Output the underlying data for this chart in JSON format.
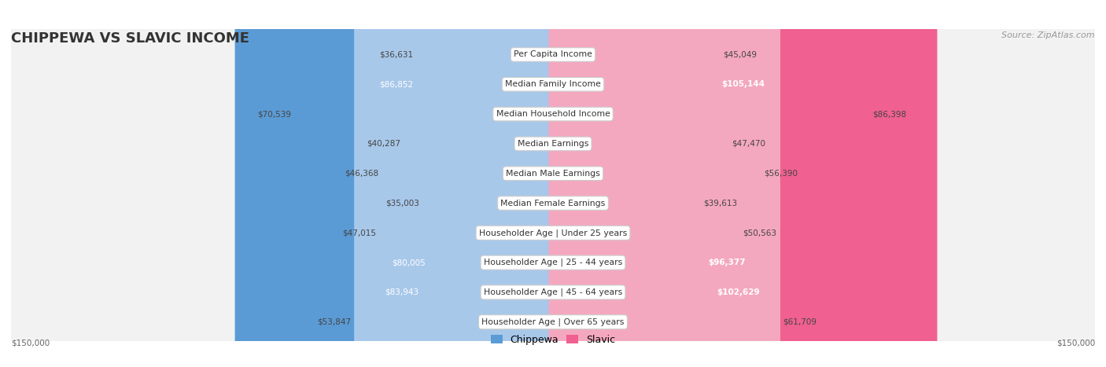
{
  "title": "CHIPPEWA VS SLAVIC INCOME",
  "source": "Source: ZipAtlas.com",
  "categories": [
    "Per Capita Income",
    "Median Family Income",
    "Median Household Income",
    "Median Earnings",
    "Median Male Earnings",
    "Median Female Earnings",
    "Householder Age | Under 25 years",
    "Householder Age | 25 - 44 years",
    "Householder Age | 45 - 64 years",
    "Householder Age | Over 65 years"
  ],
  "chippewa": [
    36631,
    86852,
    70539,
    40287,
    46368,
    35003,
    47015,
    80005,
    83943,
    53847
  ],
  "slavic": [
    45049,
    105144,
    86398,
    47470,
    56390,
    39613,
    50563,
    96377,
    102629,
    61709
  ],
  "chippewa_color_light": "#a8c8ea",
  "chippewa_color_dark": "#5b9bd5",
  "slavic_color_light": "#f4a8c0",
  "slavic_color_dark": "#f06090",
  "max_value": 150000,
  "bg_row_color": "#f2f2f2",
  "threshold_for_dark_chip": 75000,
  "threshold_for_dark_slav": 90000,
  "chippewa_label": "Chippewa",
  "slavic_label": "Slavic",
  "xlabel_left": "$150,000",
  "xlabel_right": "$150,000",
  "title_fontsize": 13,
  "source_fontsize": 8,
  "label_fontsize": 7.8,
  "value_fontsize": 7.5
}
